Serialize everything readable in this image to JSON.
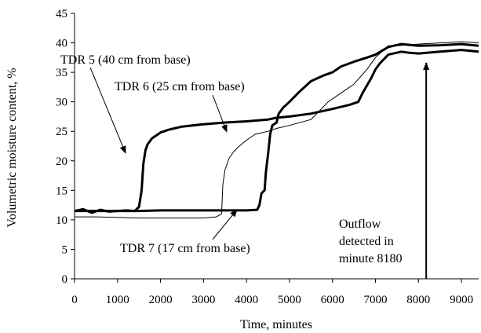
{
  "chart_data": {
    "type": "line",
    "title": "",
    "xlabel": "Time, minutes",
    "ylabel": "Volumetric moisture content, %",
    "xlim": [
      0,
      9400
    ],
    "ylim": [
      0,
      45
    ],
    "x_ticks": [
      0,
      1000,
      2000,
      3000,
      4000,
      5000,
      6000,
      7000,
      8000,
      9000
    ],
    "y_ticks": [
      0,
      5,
      10,
      15,
      20,
      25,
      30,
      35,
      40,
      45
    ],
    "grid": false,
    "legend": "none",
    "series": [
      {
        "name": "TDR 5 (40 cm from base)",
        "color": "#000000",
        "style": "thick",
        "points": [
          [
            0,
            11.5
          ],
          [
            200,
            11.8
          ],
          [
            400,
            11.2
          ],
          [
            600,
            11.7
          ],
          [
            800,
            11.4
          ],
          [
            1000,
            11.5
          ],
          [
            1200,
            11.6
          ],
          [
            1400,
            11.5
          ],
          [
            1500,
            12.2
          ],
          [
            1560,
            15
          ],
          [
            1600,
            19.5
          ],
          [
            1650,
            21.8
          ],
          [
            1700,
            22.8
          ],
          [
            1800,
            23.8
          ],
          [
            2000,
            24.8
          ],
          [
            2200,
            25.3
          ],
          [
            2500,
            25.8
          ],
          [
            3000,
            26.2
          ],
          [
            3500,
            26.5
          ],
          [
            4000,
            26.7
          ],
          [
            4500,
            27
          ],
          [
            4700,
            27.3
          ],
          [
            5000,
            27.5
          ],
          [
            5500,
            28
          ],
          [
            6000,
            28.8
          ],
          [
            6400,
            29.5
          ],
          [
            6600,
            30
          ],
          [
            6700,
            31.5
          ],
          [
            6900,
            34
          ],
          [
            7000,
            35.5
          ],
          [
            7100,
            36.5
          ],
          [
            7300,
            38
          ],
          [
            7600,
            38.5
          ],
          [
            7800,
            38.3
          ],
          [
            8000,
            38.2
          ],
          [
            8500,
            38.5
          ],
          [
            9000,
            38.8
          ],
          [
            9400,
            38.5
          ]
        ]
      },
      {
        "name": "TDR 6 (25 cm from base)",
        "color": "#000000",
        "style": "thin",
        "points": [
          [
            0,
            10.5
          ],
          [
            500,
            10.5
          ],
          [
            1000,
            10.4
          ],
          [
            1500,
            10.3
          ],
          [
            2000,
            10.3
          ],
          [
            2500,
            10.3
          ],
          [
            3000,
            10.3
          ],
          [
            3300,
            10.5
          ],
          [
            3420,
            11
          ],
          [
            3450,
            16
          ],
          [
            3500,
            18.5
          ],
          [
            3600,
            20.5
          ],
          [
            3700,
            21.5
          ],
          [
            3800,
            22.3
          ],
          [
            4000,
            23.5
          ],
          [
            4200,
            24.5
          ],
          [
            4500,
            25
          ],
          [
            4700,
            25.5
          ],
          [
            5000,
            26
          ],
          [
            5500,
            27
          ],
          [
            5700,
            28.5
          ],
          [
            5900,
            30
          ],
          [
            6200,
            31.5
          ],
          [
            6500,
            33
          ],
          [
            6800,
            35.5
          ],
          [
            7000,
            37.5
          ],
          [
            7300,
            39.5
          ],
          [
            7500,
            39.5
          ],
          [
            8000,
            39.8
          ],
          [
            8500,
            40
          ],
          [
            9000,
            40.2
          ],
          [
            9400,
            40
          ]
        ]
      },
      {
        "name": "TDR 7 (17 cm from base)",
        "color": "#000000",
        "style": "thick",
        "points": [
          [
            0,
            11.5
          ],
          [
            500,
            11.5
          ],
          [
            1000,
            11.5
          ],
          [
            1500,
            11.5
          ],
          [
            2000,
            11.6
          ],
          [
            2500,
            11.6
          ],
          [
            3000,
            11.6
          ],
          [
            3500,
            11.6
          ],
          [
            4000,
            11.6
          ],
          [
            4250,
            11.7
          ],
          [
            4300,
            12.5
          ],
          [
            4350,
            14.5
          ],
          [
            4420,
            15
          ],
          [
            4450,
            18
          ],
          [
            4500,
            21
          ],
          [
            4550,
            24.5
          ],
          [
            4600,
            26
          ],
          [
            4700,
            26.5
          ],
          [
            4750,
            28
          ],
          [
            4850,
            29
          ],
          [
            5000,
            30
          ],
          [
            5200,
            31.5
          ],
          [
            5500,
            33.5
          ],
          [
            5800,
            34.5
          ],
          [
            6000,
            35
          ],
          [
            6200,
            36
          ],
          [
            6500,
            36.8
          ],
          [
            6800,
            37.5
          ],
          [
            7000,
            38
          ],
          [
            7300,
            39.3
          ],
          [
            7600,
            39.8
          ],
          [
            8000,
            39.5
          ],
          [
            8500,
            39.6
          ],
          [
            9000,
            39.8
          ],
          [
            9400,
            39.5
          ]
        ]
      }
    ],
    "annotations": [
      {
        "text": "TDR 5 (40 cm from base)",
        "arrow_to": [
          1620,
          20
        ]
      },
      {
        "text": "TDR 6 (25 cm from base)",
        "arrow_to": [
          3850,
          24
        ]
      },
      {
        "text": "TDR 7 (17 cm from base)",
        "arrow_to": [
          4330,
          14
        ]
      },
      {
        "text": "Outflow detected in minute 8180",
        "lines": [
          "Outflow",
          "detected in",
          "minute 8180"
        ],
        "marker_x": 8180
      }
    ]
  }
}
